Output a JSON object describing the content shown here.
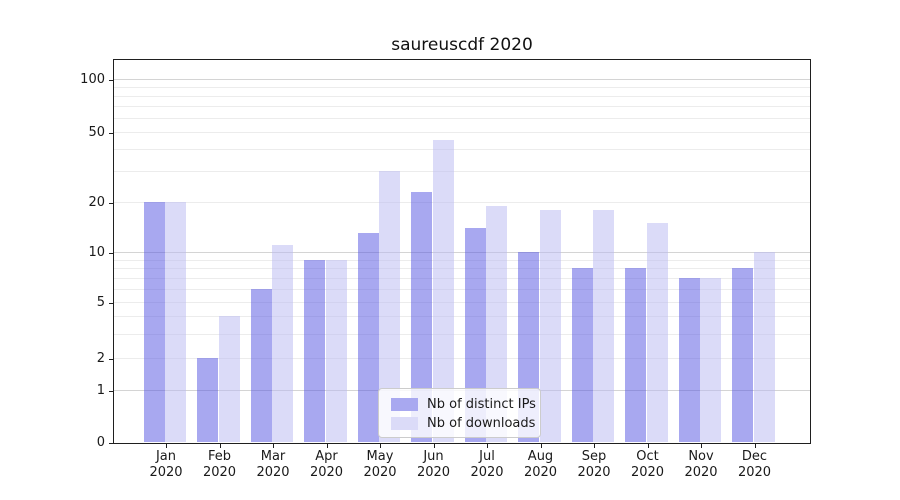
{
  "chart_data": {
    "type": "bar",
    "title": "saureuscdf 2020",
    "categories": [
      "Jan 2020",
      "Feb 2020",
      "Mar 2020",
      "Apr 2020",
      "May 2020",
      "Jun 2020",
      "Jul 2020",
      "Aug 2020",
      "Sep 2020",
      "Oct 2020",
      "Nov 2020",
      "Dec 2020"
    ],
    "series": [
      {
        "name": "Nb of distinct IPs",
        "color": "#a8a8f0",
        "values": [
          20,
          2,
          6,
          9,
          13,
          23,
          14,
          10,
          8,
          8,
          7,
          8
        ]
      },
      {
        "name": "Nb of downloads",
        "color": "#dbdbf8",
        "values": [
          20,
          4,
          11,
          9,
          30,
          45,
          19,
          18,
          18,
          15,
          7,
          10
        ]
      }
    ],
    "ylabel": "",
    "xlabel": "",
    "yticks": [
      0,
      1,
      2,
      5,
      10,
      20,
      50,
      100
    ],
    "yscale": "symlog",
    "ylim": [
      0,
      130
    ],
    "grid": "horizontal, major and minor",
    "legend_position": "lower center"
  }
}
